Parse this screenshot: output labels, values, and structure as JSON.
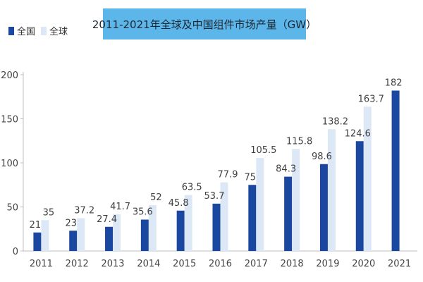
{
  "chart_data": {
    "type": "bar",
    "title": "2011-2021年全球及中国组件市场产量（GW）",
    "xlabel": "",
    "ylabel": "",
    "ylim": [
      0,
      200
    ],
    "yticks": [
      0,
      50,
      100,
      150,
      200
    ],
    "categories": [
      "2011",
      "2012",
      "2013",
      "2014",
      "2015",
      "2016",
      "2017",
      "2018",
      "2019",
      "2020",
      "2021"
    ],
    "series": [
      {
        "name": "全国",
        "color": "#1a47a0",
        "values": [
          21,
          23,
          27.4,
          35.6,
          45.8,
          53.7,
          75,
          84.3,
          98.6,
          124.6,
          182
        ]
      },
      {
        "name": "全球",
        "color": "#dde8f6",
        "values": [
          35,
          37.2,
          41.7,
          52,
          63.5,
          77.9,
          105.5,
          115.8,
          138.2,
          163.7,
          null
        ]
      }
    ],
    "legend_position": "top-left",
    "colors": {
      "title_bg": "#5cb6ea",
      "axis": "#bfbfbf"
    }
  }
}
